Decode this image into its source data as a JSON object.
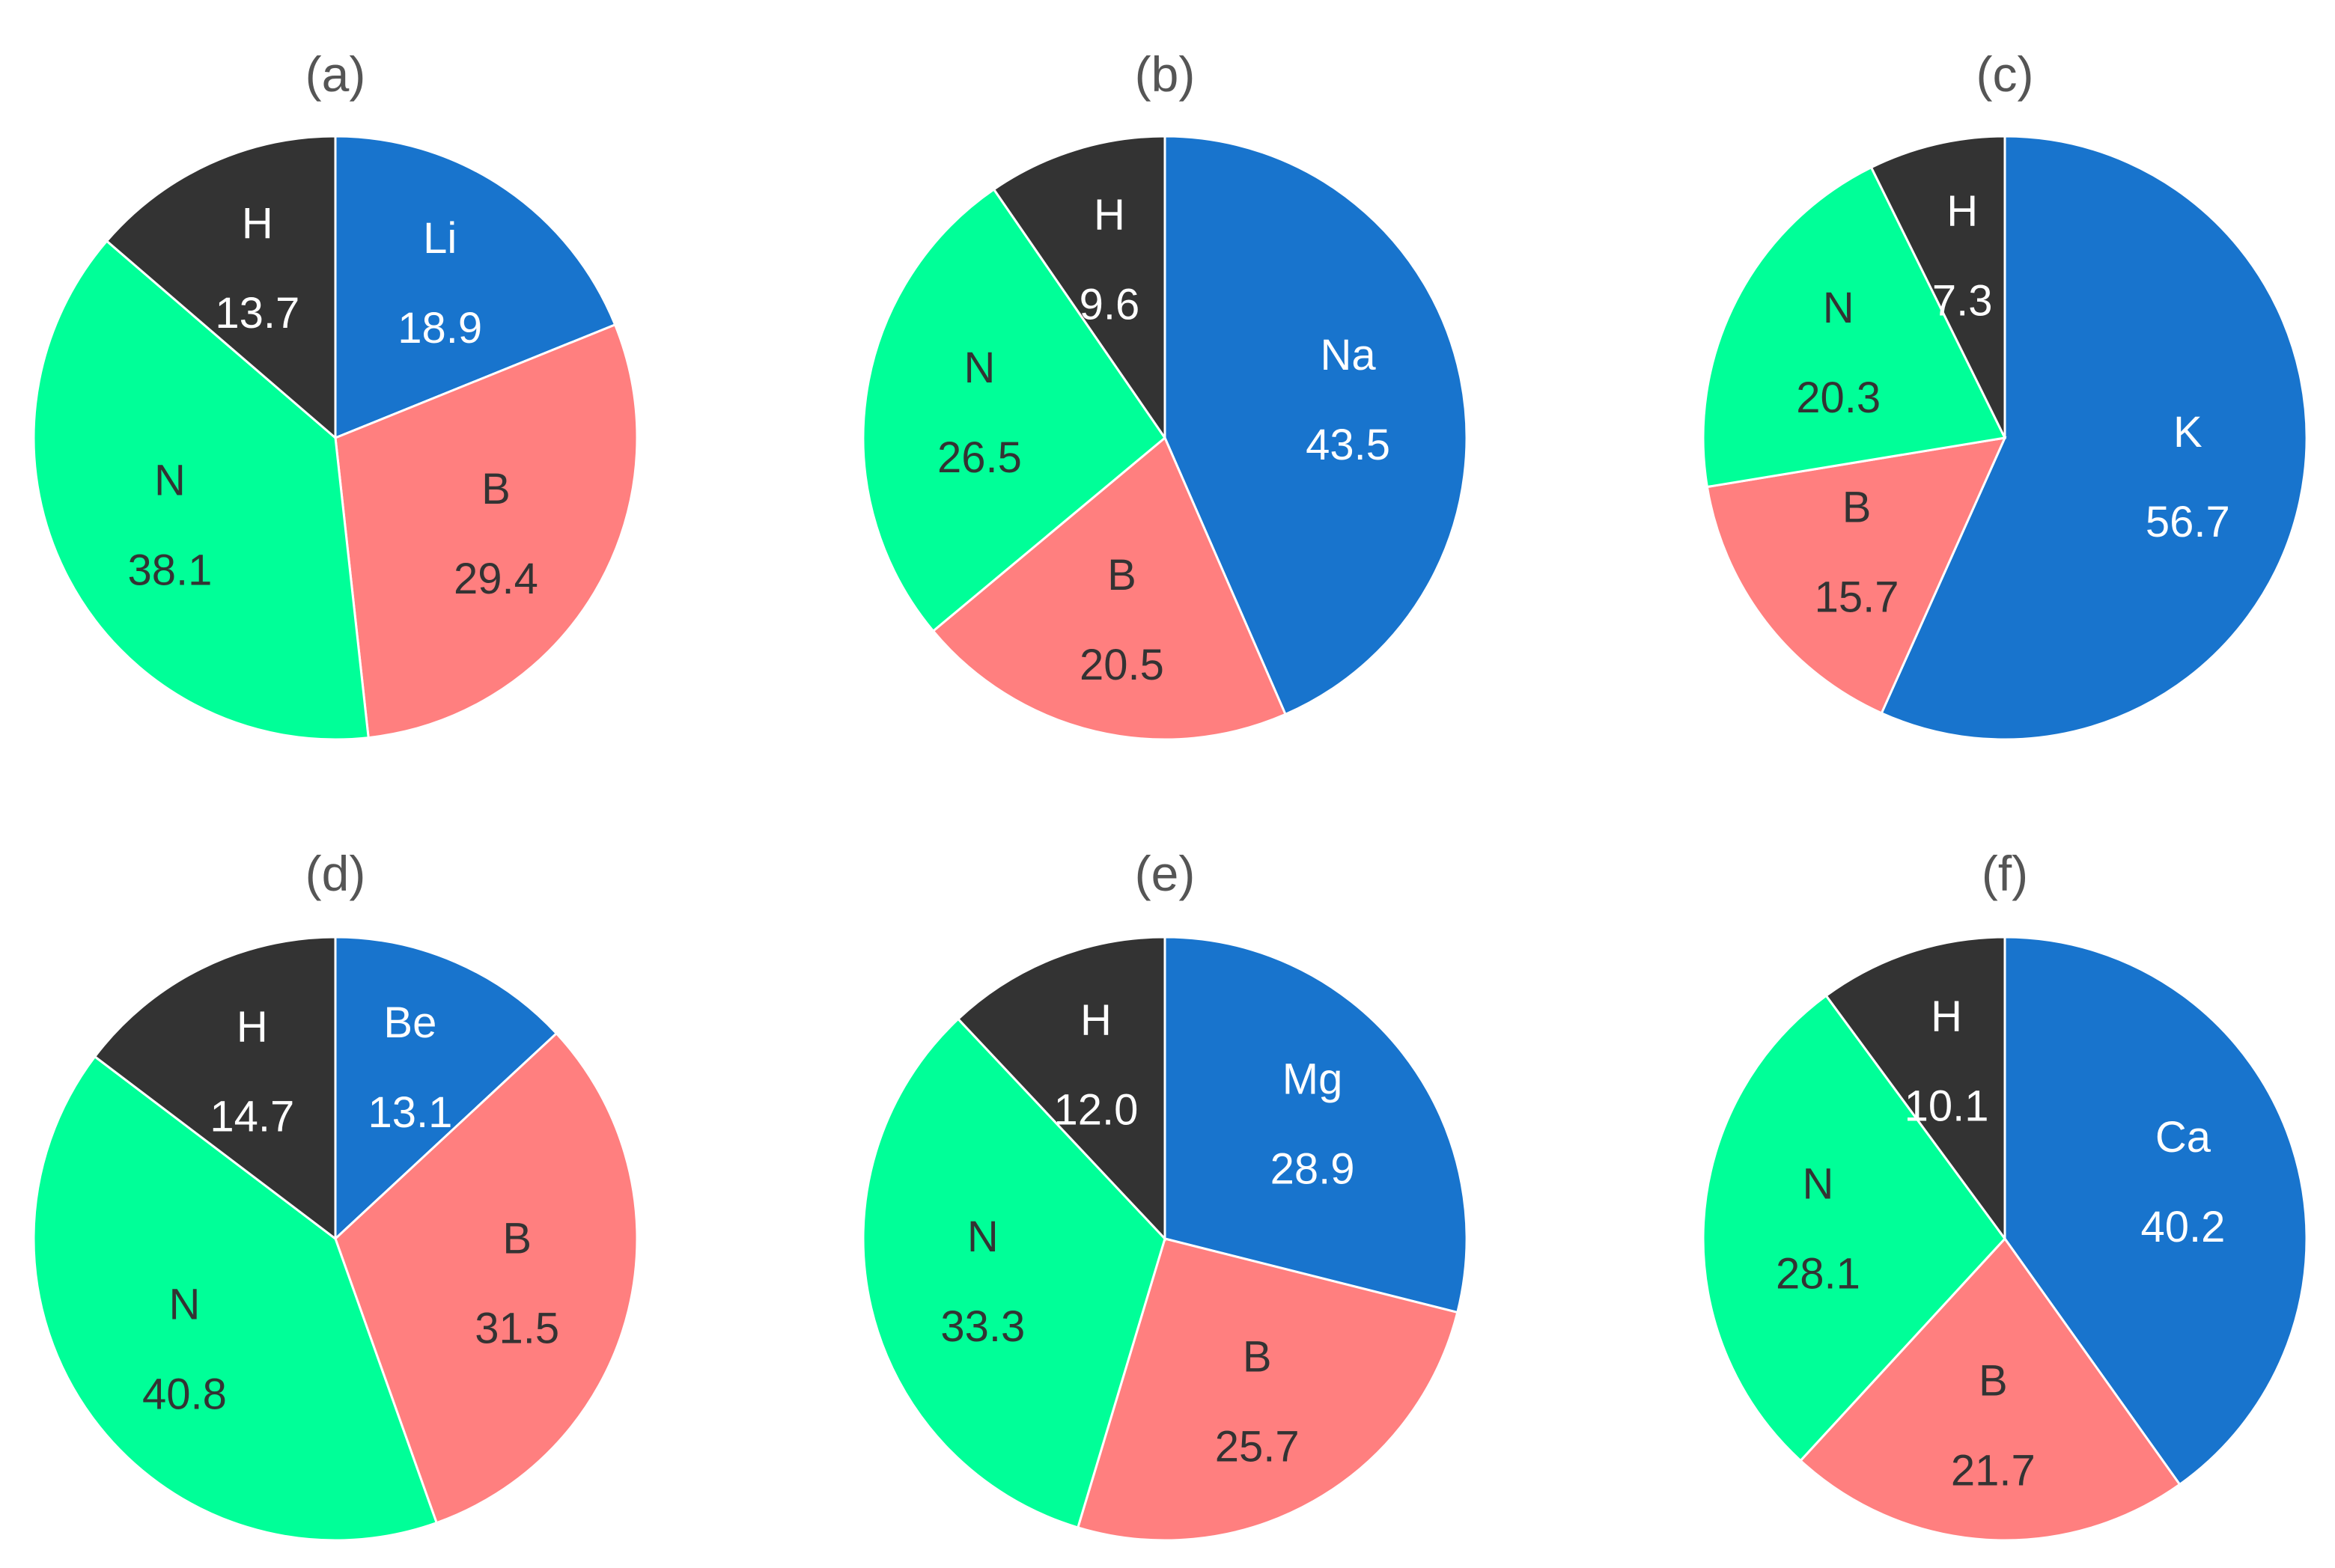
{
  "chart_data": [
    {
      "type": "pie",
      "title": "(a)",
      "slices": [
        {
          "label": "Li",
          "value": 18.9,
          "color": "#1874CD"
        },
        {
          "label": "B",
          "value": 29.4,
          "color": "#FF7F7F"
        },
        {
          "label": "N",
          "value": 38.1,
          "color": "#00FF98"
        },
        {
          "label": "H",
          "value": 13.7,
          "color": "#333333"
        }
      ]
    },
    {
      "type": "pie",
      "title": "(b)",
      "slices": [
        {
          "label": "Na",
          "value": 43.5,
          "color": "#1874CD"
        },
        {
          "label": "B",
          "value": 20.5,
          "color": "#FF7F7F"
        },
        {
          "label": "N",
          "value": 26.5,
          "color": "#00FF98"
        },
        {
          "label": "H",
          "value": 9.6,
          "color": "#333333"
        }
      ]
    },
    {
      "type": "pie",
      "title": "(c)",
      "slices": [
        {
          "label": "K",
          "value": 56.7,
          "color": "#1874CD"
        },
        {
          "label": "B",
          "value": 15.7,
          "color": "#FF7F7F"
        },
        {
          "label": "N",
          "value": 20.3,
          "color": "#00FF98"
        },
        {
          "label": "H",
          "value": 7.3,
          "color": "#333333"
        }
      ]
    },
    {
      "type": "pie",
      "title": "(d)",
      "slices": [
        {
          "label": "Be",
          "value": 13.1,
          "color": "#1874CD"
        },
        {
          "label": "B",
          "value": 31.5,
          "color": "#FF7F7F"
        },
        {
          "label": "N",
          "value": 40.8,
          "color": "#00FF98"
        },
        {
          "label": "H",
          "value": 14.7,
          "color": "#333333"
        }
      ]
    },
    {
      "type": "pie",
      "title": "(e)",
      "slices": [
        {
          "label": "Mg",
          "value": 28.9,
          "color": "#1874CD"
        },
        {
          "label": "B",
          "value": 25.7,
          "color": "#FF7F7F"
        },
        {
          "label": "N",
          "value": 33.3,
          "color": "#00FF98"
        },
        {
          "label": "H",
          "value": 12.0,
          "color": "#333333"
        }
      ]
    },
    {
      "type": "pie",
      "title": "(f)",
      "slices": [
        {
          "label": "Ca",
          "value": 40.2,
          "color": "#1874CD"
        },
        {
          "label": "B",
          "value": 21.7,
          "color": "#FF7F7F"
        },
        {
          "label": "N",
          "value": 28.1,
          "color": "#00FF98"
        },
        {
          "label": "H",
          "value": 10.1,
          "color": "#333333"
        }
      ]
    }
  ],
  "colors": {
    "background": "#ffffff",
    "title_text": "#555555",
    "light_text": "#ffffff",
    "dark_text": "#333333"
  }
}
